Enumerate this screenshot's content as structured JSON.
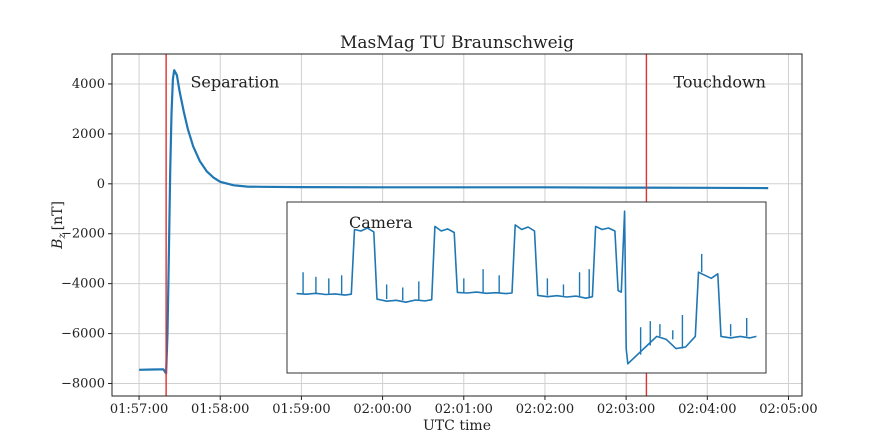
{
  "chart_data": {
    "type": "line",
    "title": "MasMag TU Braunschweig",
    "xlabel": "UTC time",
    "ylabel_main": "B",
    "ylabel_sub": "z",
    "ylabel_unit": "[nT]",
    "xlim": [
      "01:56:40",
      "02:05:10"
    ],
    "ylim": [
      -8500,
      5200
    ],
    "x_ticks": [
      "01:57:00",
      "01:58:00",
      "01:59:00",
      "02:00:00",
      "02:01:00",
      "02:02:00",
      "02:03:00",
      "02:04:00",
      "02:05:00"
    ],
    "y_ticks": [
      4000,
      2000,
      0,
      -2000,
      -4000,
      -6000,
      -8000
    ],
    "y_tick_labels": [
      "4000",
      "2000",
      "0",
      "−2000",
      "−4000",
      "−6000",
      "−8000"
    ],
    "grid": true,
    "series": [
      {
        "color": "#1f77b4",
        "points": [
          [
            "01:57:00",
            -7450
          ],
          [
            "01:57:10",
            -7440
          ],
          [
            "01:57:18",
            -7430
          ],
          [
            "01:57:20",
            -7600
          ],
          [
            "01:57:21",
            -6000
          ],
          [
            "01:57:22",
            -3000
          ],
          [
            "01:57:23",
            500
          ],
          [
            "01:57:24",
            2800
          ],
          [
            "01:57:25",
            4200
          ],
          [
            "01:57:26",
            4550
          ],
          [
            "01:57:28",
            4350
          ],
          [
            "01:57:30",
            3700
          ],
          [
            "01:57:33",
            2900
          ],
          [
            "01:57:36",
            2200
          ],
          [
            "01:57:40",
            1500
          ],
          [
            "01:57:45",
            900
          ],
          [
            "01:57:50",
            500
          ],
          [
            "01:57:55",
            250
          ],
          [
            "01:58:00",
            80
          ],
          [
            "01:58:10",
            -60
          ],
          [
            "01:58:20",
            -110
          ],
          [
            "01:58:30",
            -120
          ],
          [
            "01:59:00",
            -130
          ],
          [
            "02:00:00",
            -140
          ],
          [
            "02:01:00",
            -140
          ],
          [
            "02:02:00",
            -140
          ],
          [
            "02:03:00",
            -150
          ],
          [
            "02:04:00",
            -160
          ],
          [
            "02:04:45",
            -170
          ]
        ]
      }
    ],
    "vlines": [
      {
        "x": "01:57:20",
        "color": "#e03030"
      },
      {
        "x": "02:03:15",
        "color": "#e03030"
      }
    ],
    "annotations": [
      {
        "text": "Separation",
        "x": "01:57:38",
        "y": 4100
      },
      {
        "text": "Touchdown",
        "x": "02:03:35",
        "y": 4100
      }
    ],
    "inset": {
      "label": "Camera",
      "series": [
        {
          "color": "#1f77b4",
          "points": [
            [
              0,
              -4800
            ],
            [
              3,
              -4820
            ],
            [
              6,
              -4790
            ],
            [
              9,
              -4830
            ],
            [
              12,
              -4810
            ],
            [
              15,
              -4850
            ],
            [
              17,
              -4820
            ],
            [
              18,
              -2700
            ],
            [
              20,
              -2750
            ],
            [
              22,
              -2650
            ],
            [
              24,
              -2780
            ],
            [
              25,
              -4980
            ],
            [
              28,
              -5050
            ],
            [
              31,
              -5020
            ],
            [
              34,
              -5080
            ],
            [
              37,
              -5010
            ],
            [
              40,
              -5040
            ],
            [
              42,
              -5000
            ],
            [
              43,
              -2600
            ],
            [
              45,
              -2750
            ],
            [
              47,
              -2680
            ],
            [
              49,
              -2800
            ],
            [
              50,
              -4760
            ],
            [
              53,
              -4780
            ],
            [
              56,
              -4750
            ],
            [
              59,
              -4790
            ],
            [
              62,
              -4770
            ],
            [
              65,
              -4800
            ],
            [
              67,
              -4780
            ],
            [
              68,
              -2550
            ],
            [
              70,
              -2700
            ],
            [
              72,
              -2620
            ],
            [
              74,
              -2750
            ],
            [
              75,
              -4860
            ],
            [
              78,
              -4900
            ],
            [
              81,
              -4870
            ],
            [
              84,
              -4910
            ],
            [
              87,
              -4880
            ],
            [
              90,
              -4950
            ],
            [
              92,
              -4900
            ],
            [
              93,
              -2600
            ],
            [
              95,
              -2700
            ],
            [
              97,
              -2650
            ],
            [
              99,
              -2750
            ],
            [
              100,
              -4700
            ],
            [
              101,
              -4750
            ],
            [
              102,
              -2100
            ],
            [
              102.5,
              -6600
            ],
            [
              103,
              -7100
            ],
            [
              106,
              -6800
            ],
            [
              109,
              -6500
            ],
            [
              112,
              -6200
            ],
            [
              115,
              -6300
            ],
            [
              118,
              -6600
            ],
            [
              121,
              -6550
            ],
            [
              124,
              -6200
            ],
            [
              125,
              -4100
            ],
            [
              127,
              -4200
            ],
            [
              129,
              -4300
            ],
            [
              131,
              -4150
            ],
            [
              132,
              -6200
            ],
            [
              135,
              -6250
            ],
            [
              138,
              -6200
            ],
            [
              141,
              -6250
            ],
            [
              143,
              -6200
            ]
          ]
        }
      ],
      "spikes": [
        [
          2,
          -4100
        ],
        [
          6,
          -4250
        ],
        [
          10,
          -4300
        ],
        [
          14,
          -4200
        ],
        [
          28,
          -4500
        ],
        [
          33,
          -4600
        ],
        [
          38,
          -4400
        ],
        [
          52,
          -4300
        ],
        [
          58,
          -4000
        ],
        [
          63,
          -4200
        ],
        [
          78,
          -4300
        ],
        [
          83,
          -4500
        ],
        [
          88,
          -4100
        ],
        [
          91,
          -4000
        ],
        [
          107,
          -5900
        ],
        [
          110,
          -5700
        ],
        [
          113,
          -5800
        ],
        [
          117,
          -6000
        ],
        [
          120,
          -5500
        ],
        [
          126,
          -3500
        ],
        [
          135,
          -5800
        ],
        [
          140,
          -5600
        ]
      ],
      "xlim": [
        -3,
        146
      ],
      "ylim": [
        -7400,
        -1800
      ]
    }
  }
}
